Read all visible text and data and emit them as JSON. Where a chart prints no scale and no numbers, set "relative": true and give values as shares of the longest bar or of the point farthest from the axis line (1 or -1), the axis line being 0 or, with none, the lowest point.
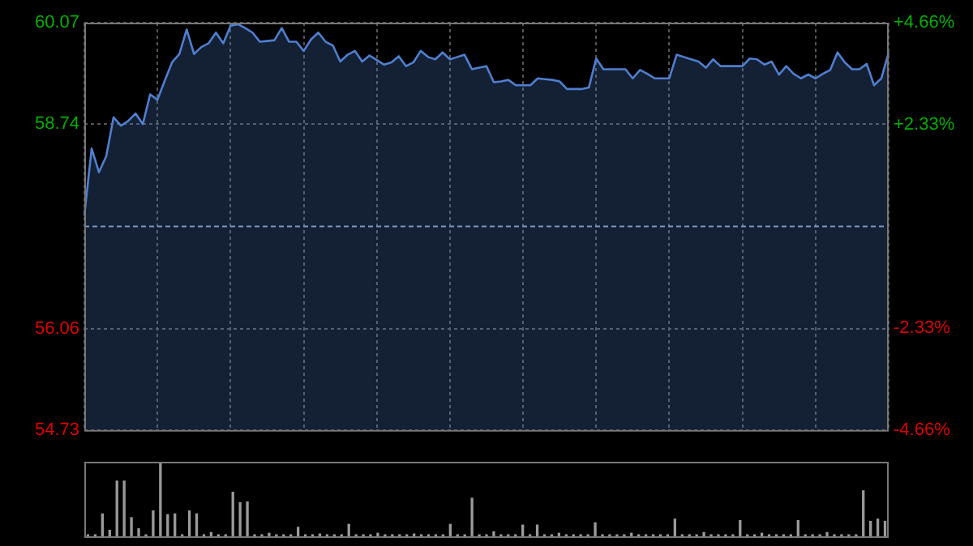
{
  "chart_data": [
    {
      "type": "area",
      "categories": [
        null,
        null,
        null,
        null,
        null,
        null,
        null,
        null,
        null,
        null,
        null,
        null,
        null,
        null,
        null,
        null,
        null,
        null,
        null,
        null,
        null,
        null,
        null,
        null,
        null,
        null,
        null,
        null,
        null,
        null,
        null,
        null,
        null,
        null,
        null,
        null,
        null,
        null,
        null,
        null,
        null,
        null,
        null,
        null,
        null,
        null,
        null,
        null,
        null,
        null,
        null,
        null,
        null,
        null,
        null,
        null,
        null,
        null,
        null,
        null,
        null,
        null,
        null,
        null,
        null,
        null,
        null,
        null,
        null,
        null,
        null,
        null,
        null,
        null,
        null,
        null,
        null,
        null,
        null,
        null,
        null,
        null,
        null,
        null,
        null,
        null,
        null,
        null,
        null,
        null,
        null,
        null,
        null,
        null,
        null,
        null,
        null,
        null,
        null,
        null,
        null,
        null,
        null,
        null,
        null,
        null,
        null,
        null,
        null,
        null,
        null
      ],
      "series": [
        {
          "color": "#4f7fcf",
          "values": [
            57.54,
            58.42,
            58.11,
            58.32,
            58.83,
            58.72,
            58.78,
            58.88,
            58.74,
            59.13,
            59.06,
            59.31,
            59.55,
            59.66,
            59.98,
            59.66,
            59.75,
            59.8,
            59.94,
            59.8,
            60.03,
            60.05,
            60.0,
            59.94,
            59.82,
            59.83,
            59.84,
            60.0,
            59.82,
            59.82,
            59.7,
            59.85,
            59.94,
            59.82,
            59.77,
            59.56,
            59.65,
            59.7,
            59.56,
            59.64,
            59.58,
            59.52,
            59.55,
            59.63,
            59.5,
            59.55,
            59.7,
            59.62,
            59.59,
            59.68,
            59.59,
            59.62,
            59.65,
            59.46,
            59.48,
            59.5,
            59.29,
            59.3,
            59.32,
            59.25,
            59.25,
            59.25,
            59.34,
            59.33,
            59.32,
            59.3,
            59.2,
            59.2,
            59.2,
            59.22,
            59.6,
            59.46,
            59.46,
            59.46,
            59.46,
            59.34,
            59.45,
            59.4,
            59.34,
            59.34,
            59.34,
            59.65,
            59.62,
            59.59,
            59.56,
            59.48,
            59.59,
            59.5,
            59.5,
            59.5,
            59.5,
            59.6,
            59.59,
            59.52,
            59.56,
            59.39,
            59.5,
            59.4,
            59.34,
            59.39,
            59.34,
            59.4,
            59.45,
            59.68,
            59.55,
            59.46,
            59.46,
            59.53,
            59.25,
            59.34,
            59.68
          ]
        }
      ],
      "ylim": [
        54.73,
        60.07
      ],
      "yticks": [
        54.73,
        56.06,
        58.74,
        60.07
      ],
      "ref_lines": [
        {
          "axis": "y",
          "value": 57.4,
          "color": "#8aa0b8",
          "line_style": "dashed"
        }
      ],
      "y2lim": [
        -4.66,
        4.66
      ],
      "y2ticks": [
        {
          "value": -4.66,
          "label": "-4.66%"
        },
        {
          "value": -2.33,
          "label": "-2.33%"
        },
        {
          "value": 2.33,
          "label": "+2.33%"
        },
        {
          "value": 4.66,
          "label": "+4.66%"
        }
      ],
      "grid": true
    },
    {
      "type": "bar",
      "relative": true,
      "color": "#9a9a9a",
      "categories": [
        null,
        null,
        null,
        null,
        null,
        null,
        null,
        null,
        null,
        null,
        null,
        null,
        null,
        null,
        null,
        null,
        null,
        null,
        null,
        null,
        null,
        null,
        null,
        null,
        null,
        null,
        null,
        null,
        null,
        null,
        null,
        null,
        null,
        null,
        null,
        null,
        null,
        null,
        null,
        null,
        null,
        null,
        null,
        null,
        null,
        null,
        null,
        null,
        null,
        null,
        null,
        null,
        null,
        null,
        null,
        null,
        null,
        null,
        null,
        null,
        null,
        null,
        null,
        null,
        null,
        null,
        null,
        null,
        null,
        null,
        null,
        null,
        null,
        null,
        null,
        null,
        null,
        null,
        null,
        null,
        null,
        null,
        null,
        null,
        null,
        null,
        null,
        null,
        null,
        null,
        null,
        null,
        null,
        null,
        null,
        null,
        null,
        null,
        null,
        null,
        null,
        null,
        null,
        null,
        null,
        null,
        null,
        null,
        null,
        null,
        null
      ],
      "values": [
        0.02,
        0.02,
        0.3,
        0.08,
        0.74,
        0.74,
        0.25,
        0.1,
        0.02,
        0.34,
        1,
        0.29,
        0.3,
        0.02,
        0.34,
        0.3,
        0.02,
        0.05,
        0.02,
        0.02,
        0.59,
        0.45,
        0.46,
        0.02,
        0.02,
        0.04,
        0.02,
        0.02,
        0.02,
        0.12,
        0.02,
        0.02,
        0.03,
        0.02,
        0.02,
        0.02,
        0.16,
        0.02,
        0.02,
        0.02,
        0.04,
        0.02,
        0.02,
        0.02,
        0.02,
        0.03,
        0.02,
        0.02,
        0.02,
        0.02,
        0.16,
        0.02,
        0.02,
        0.51,
        0.02,
        0.02,
        0.06,
        0.02,
        0.02,
        0.02,
        0.15,
        0.02,
        0.15,
        0.02,
        0.02,
        0.04,
        0.02,
        0.02,
        0.02,
        0.02,
        0.18,
        0.02,
        0.02,
        0.02,
        0.02,
        0.04,
        0.02,
        0.02,
        0.02,
        0.02,
        0.02,
        0.23,
        0.02,
        0.02,
        0.02,
        0.05,
        0.02,
        0.02,
        0.02,
        0.02,
        0.21,
        0.02,
        0.02,
        0.04,
        0.02,
        0.02,
        0.02,
        0.02,
        0.21,
        0.02,
        0.02,
        0.02,
        0.05,
        0.02,
        0.02,
        0.02,
        0.02,
        0.61,
        0.2,
        0.23,
        0.2
      ],
      "tick_labels": false
    }
  ]
}
